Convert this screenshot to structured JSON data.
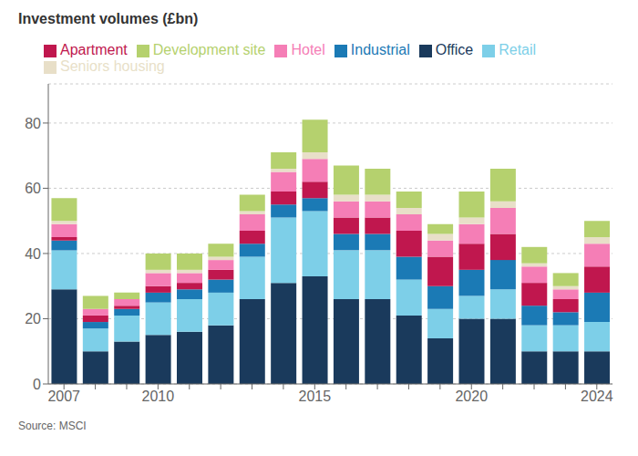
{
  "chart_data": {
    "type": "bar",
    "stacked": true,
    "title": "Investment volumes (£bn)",
    "annotations": [
      "Source: MSCI"
    ],
    "categories": [
      "2007",
      null,
      null,
      "2010",
      null,
      null,
      null,
      null,
      "2015",
      null,
      null,
      null,
      null,
      "2020",
      null,
      null,
      null,
      "2024"
    ],
    "series": [
      {
        "name": "Office",
        "color": "#1a3a5c",
        "values": [
          29,
          10,
          13,
          15,
          16,
          18,
          26,
          31,
          33,
          26,
          26,
          21,
          14,
          20,
          20,
          10,
          10,
          10
        ]
      },
      {
        "name": "Retail",
        "color": "#7dcfe8",
        "values": [
          12,
          7,
          8,
          10,
          10,
          10,
          13,
          20,
          20,
          15,
          15,
          11,
          9,
          7,
          9,
          8,
          8,
          9
        ]
      },
      {
        "name": "Industrial",
        "color": "#1b7ab5",
        "values": [
          3,
          2,
          2,
          3,
          3,
          4,
          4,
          4,
          4,
          5,
          5,
          7,
          7,
          8,
          9,
          6,
          4,
          9
        ]
      },
      {
        "name": "Apartment",
        "color": "#c0174e",
        "values": [
          1,
          2,
          1,
          2,
          2,
          3,
          4,
          4,
          5,
          5,
          5,
          8,
          9,
          8,
          8,
          7,
          4,
          8
        ]
      },
      {
        "name": "Hotel",
        "color": "#f57eb6",
        "values": [
          4,
          2,
          2,
          4,
          3,
          3,
          5,
          6,
          7,
          5,
          5,
          5,
          5,
          6,
          8,
          5,
          3,
          7
        ]
      },
      {
        "name": "Seniors housing",
        "color": "#e8dfc8",
        "values": [
          1,
          0,
          0,
          1,
          1,
          1,
          1,
          1,
          2,
          2,
          2,
          2,
          2,
          2,
          2,
          1,
          1,
          2
        ]
      },
      {
        "name": "Development site",
        "color": "#b5d16e",
        "values": [
          7,
          4,
          2,
          5,
          5,
          4,
          5,
          5,
          10,
          9,
          8,
          5,
          3,
          8,
          10,
          5,
          4,
          5
        ]
      }
    ],
    "ylim": [
      0,
      92
    ],
    "yticks": [
      0,
      20,
      40,
      60,
      80
    ],
    "grid": true,
    "legend": "top-left"
  }
}
